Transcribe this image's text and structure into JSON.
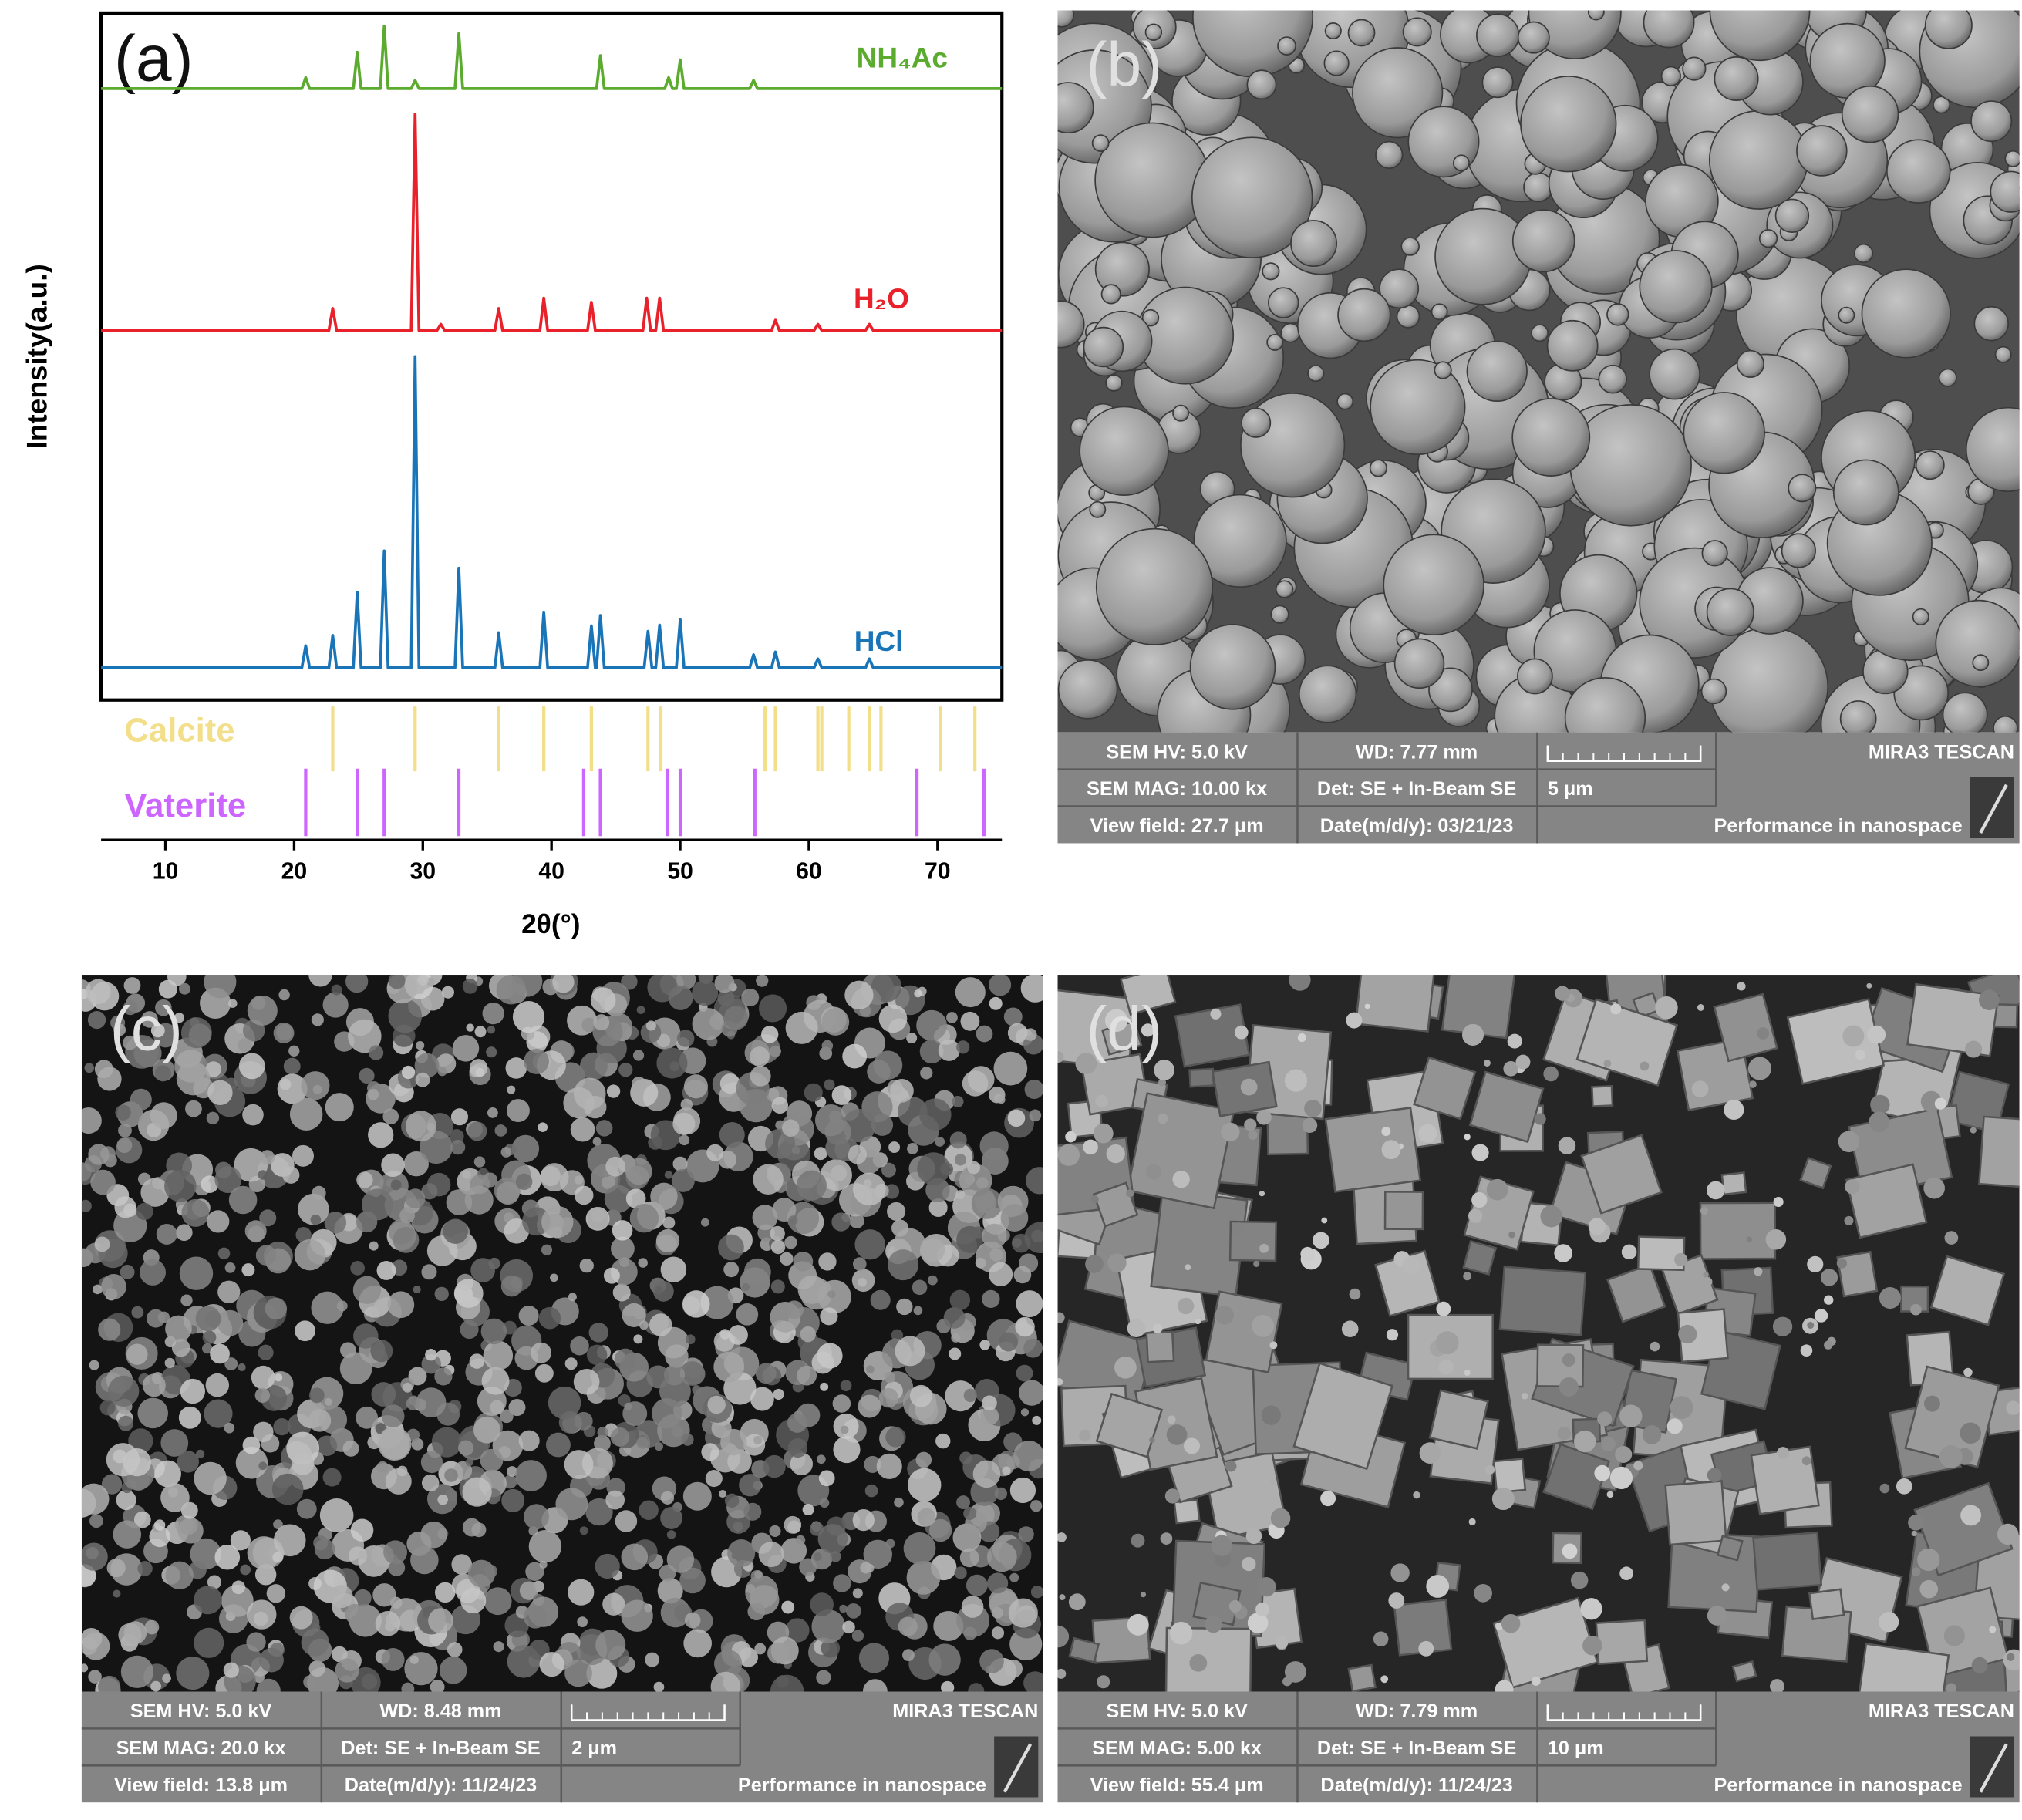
{
  "chart_data": {
    "type": "line",
    "panel_label": "(a)",
    "y_label": "Intensity(a.u.)",
    "x_label": "2θ(°)",
    "xlim": [
      5,
      75
    ],
    "xticks": [
      10,
      20,
      30,
      40,
      50,
      60,
      70
    ],
    "ylim": [
      0,
      100
    ],
    "series": [
      {
        "name": "NH₄Ac",
        "color": "#5aab2e",
        "x": [
          5,
          20.6,
          20.9,
          21.2,
          24.6,
          24.9,
          25.2,
          26.7,
          27.0,
          27.3,
          29.1,
          29.4,
          29.7,
          32.5,
          32.8,
          33.1,
          43.5,
          43.8,
          44.1,
          48.8,
          49.1,
          49.4,
          49.7,
          50.0,
          50.3,
          55.4,
          55.7,
          56.0,
          75
        ],
        "values": [
          89,
          89,
          90.6,
          89,
          89,
          94.3,
          89,
          89,
          98.1,
          89,
          89,
          90.2,
          89,
          89,
          97.0,
          89,
          89,
          93.8,
          89,
          89,
          90.6,
          89,
          89,
          93.2,
          89,
          89,
          90.2,
          89,
          89
        ]
      },
      {
        "name": "H₂O",
        "color": "#e8212a",
        "x": [
          5,
          22.7,
          23.0,
          23.3,
          29.1,
          29.4,
          29.7,
          31.1,
          31.4,
          31.7,
          35.6,
          35.9,
          36.2,
          39.1,
          39.4,
          39.7,
          42.8,
          43.1,
          43.4,
          47.1,
          47.4,
          47.7,
          48.1,
          48.4,
          48.7,
          57.1,
          57.4,
          57.7,
          60.4,
          60.7,
          61.0,
          64.4,
          64.7,
          65.0,
          75
        ],
        "values": [
          53.8,
          53.8,
          57.0,
          53.8,
          53.8,
          85.3,
          53.8,
          53.8,
          54.7,
          53.8,
          53.8,
          57.0,
          53.8,
          53.8,
          58.5,
          53.8,
          53.8,
          57.9,
          53.8,
          53.8,
          58.5,
          53.8,
          53.8,
          58.5,
          53.8,
          53.8,
          55.3,
          53.8,
          53.8,
          54.7,
          53.8,
          53.8,
          54.7,
          53.8,
          53.8
        ]
      },
      {
        "name": "HCl",
        "color": "#1a75b8",
        "x": [
          5,
          20.6,
          20.9,
          21.2,
          22.7,
          23.0,
          23.3,
          24.6,
          24.9,
          25.2,
          26.7,
          27.0,
          27.3,
          29.1,
          29.4,
          29.7,
          32.5,
          32.8,
          33.1,
          35.6,
          35.9,
          36.2,
          39.1,
          39.4,
          39.7,
          42.8,
          43.1,
          43.4,
          43.5,
          43.8,
          44.1,
          47.2,
          47.5,
          47.8,
          48.1,
          48.4,
          48.7,
          49.7,
          50.0,
          50.3,
          55.4,
          55.7,
          56.0,
          57.1,
          57.4,
          57.7,
          60.4,
          60.7,
          61.0,
          64.4,
          64.7,
          65.0,
          75
        ],
        "values": [
          4.7,
          4.7,
          7.9,
          4.7,
          4.7,
          9.4,
          4.7,
          4.7,
          15.7,
          4.7,
          4.7,
          21.7,
          4.7,
          4.7,
          50.0,
          4.7,
          4.7,
          19.2,
          4.7,
          4.7,
          9.8,
          4.7,
          4.7,
          12.8,
          4.7,
          4.7,
          10.8,
          4.7,
          4.7,
          12.3,
          4.7,
          4.7,
          10.0,
          4.7,
          4.7,
          10.9,
          4.7,
          4.7,
          11.7,
          4.7,
          4.7,
          6.6,
          4.7,
          4.7,
          7.0,
          4.7,
          4.7,
          6.0,
          4.7,
          4.7,
          6.0,
          4.7,
          4.7
        ]
      }
    ],
    "references": [
      {
        "name": "Calcite",
        "color": "#f3df8a",
        "x": [
          23.0,
          29.4,
          35.9,
          39.4,
          43.1,
          47.5,
          48.5,
          56.6,
          57.4,
          60.7,
          61.0,
          63.1,
          64.7,
          65.6,
          70.2,
          72.9
        ]
      },
      {
        "name": "Vaterite",
        "color": "#cc66ff",
        "x": [
          20.9,
          24.9,
          27.0,
          32.8,
          42.5,
          43.8,
          49.0,
          50.0,
          55.8,
          68.4,
          73.6
        ]
      }
    ]
  },
  "sem_panels": [
    {
      "label": "(b)",
      "hv": "SEM HV: 5.0 kV",
      "wd": "WD: 7.77 mm",
      "brand": "MIRA3 TESCAN",
      "mag": "SEM MAG: 10.00 kx",
      "det": "Det: SE + In-Beam SE",
      "scale": "5 μm",
      "field": "View field: 27.7 μm",
      "date": "Date(m/d/y): 03/21/23",
      "slogan": "Performance in nanospace"
    },
    {
      "label": "(c)",
      "hv": "SEM HV: 5.0 kV",
      "wd": "WD: 8.48 mm",
      "brand": "MIRA3 TESCAN",
      "mag": "SEM MAG: 20.0 kx",
      "det": "Det: SE + In-Beam SE",
      "scale": "2 μm",
      "field": "View field: 13.8 μm",
      "date": "Date(m/d/y): 11/24/23",
      "slogan": "Performance in nanospace"
    },
    {
      "label": "(d)",
      "hv": "SEM HV: 5.0 kV",
      "wd": "WD: 7.79 mm",
      "brand": "MIRA3 TESCAN",
      "mag": "SEM MAG: 5.00 kx",
      "det": "Det: SE + In-Beam SE",
      "scale": "10 μm",
      "field": "View field: 55.4 μm",
      "date": "Date(m/d/y): 11/24/23",
      "slogan": "Performance in nanospace"
    }
  ]
}
